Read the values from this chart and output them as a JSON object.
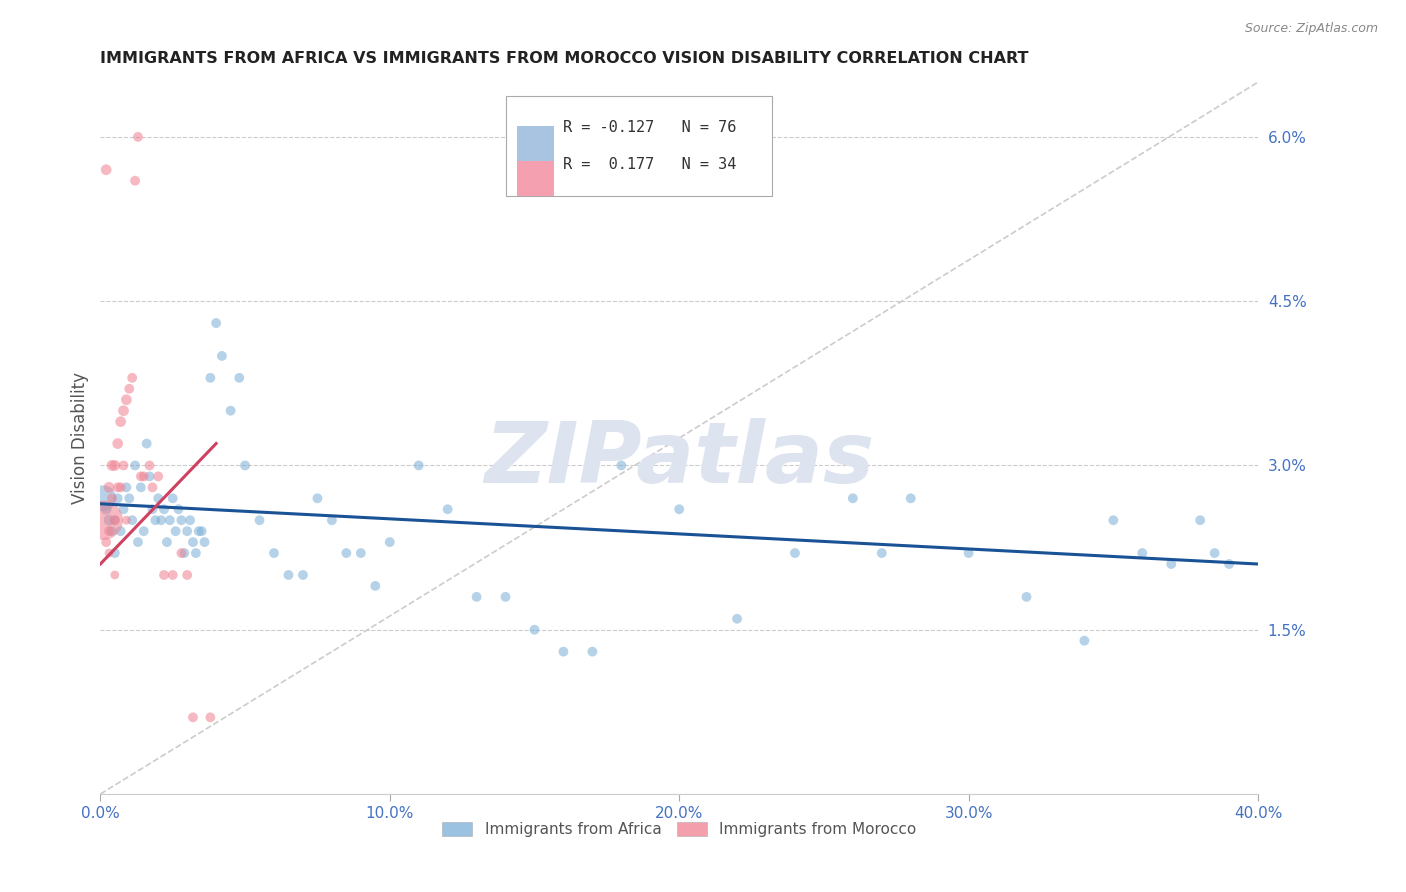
{
  "title": "IMMIGRANTS FROM AFRICA VS IMMIGRANTS FROM MOROCCO VISION DISABILITY CORRELATION CHART",
  "source": "Source: ZipAtlas.com",
  "ylabel": "Vision Disability",
  "x_min": 0.0,
  "x_max": 0.4,
  "y_min": 0.0,
  "y_max": 0.065,
  "x_ticks": [
    0.0,
    0.1,
    0.2,
    0.3,
    0.4
  ],
  "x_tick_labels": [
    "0.0%",
    "10.0%",
    "20.0%",
    "30.0%",
    "40.0%"
  ],
  "y_ticks": [
    0.0,
    0.015,
    0.03,
    0.045,
    0.06
  ],
  "y_tick_labels": [
    "",
    "1.5%",
    "3.0%",
    "4.5%",
    "6.0%"
  ],
  "grid_color": "#cccccc",
  "watermark": "ZIPatlas",
  "africa_color": "#7aaed6",
  "morocco_color": "#f08090",
  "legend_box_africa": "#a8c4e0",
  "legend_box_morocco": "#f4a0b0",
  "legend_R_africa": "R = -0.127",
  "legend_N_africa": "N = 76",
  "legend_R_morocco": "R =  0.177",
  "legend_N_morocco": "N = 34",
  "africa_x": [
    0.001,
    0.002,
    0.003,
    0.004,
    0.005,
    0.005,
    0.006,
    0.007,
    0.008,
    0.009,
    0.01,
    0.011,
    0.012,
    0.013,
    0.014,
    0.015,
    0.016,
    0.017,
    0.018,
    0.019,
    0.02,
    0.021,
    0.022,
    0.023,
    0.024,
    0.025,
    0.026,
    0.027,
    0.028,
    0.029,
    0.03,
    0.031,
    0.032,
    0.033,
    0.034,
    0.035,
    0.036,
    0.038,
    0.04,
    0.042,
    0.045,
    0.048,
    0.05,
    0.055,
    0.06,
    0.065,
    0.07,
    0.075,
    0.08,
    0.085,
    0.09,
    0.095,
    0.1,
    0.11,
    0.12,
    0.13,
    0.14,
    0.15,
    0.16,
    0.17,
    0.18,
    0.2,
    0.22,
    0.24,
    0.26,
    0.27,
    0.28,
    0.3,
    0.32,
    0.34,
    0.35,
    0.36,
    0.37,
    0.38,
    0.385,
    0.39
  ],
  "africa_y": [
    0.027,
    0.026,
    0.025,
    0.024,
    0.025,
    0.022,
    0.027,
    0.024,
    0.026,
    0.028,
    0.027,
    0.025,
    0.03,
    0.023,
    0.028,
    0.024,
    0.032,
    0.029,
    0.026,
    0.025,
    0.027,
    0.025,
    0.026,
    0.023,
    0.025,
    0.027,
    0.024,
    0.026,
    0.025,
    0.022,
    0.024,
    0.025,
    0.023,
    0.022,
    0.024,
    0.024,
    0.023,
    0.038,
    0.043,
    0.04,
    0.035,
    0.038,
    0.03,
    0.025,
    0.022,
    0.02,
    0.02,
    0.027,
    0.025,
    0.022,
    0.022,
    0.019,
    0.023,
    0.03,
    0.026,
    0.018,
    0.018,
    0.015,
    0.013,
    0.013,
    0.03,
    0.026,
    0.016,
    0.022,
    0.027,
    0.022,
    0.027,
    0.022,
    0.018,
    0.014,
    0.025,
    0.022,
    0.021,
    0.025,
    0.022,
    0.021
  ],
  "africa_size": [
    350,
    60,
    60,
    50,
    50,
    50,
    50,
    50,
    50,
    50,
    50,
    50,
    50,
    50,
    50,
    50,
    50,
    50,
    50,
    50,
    50,
    50,
    50,
    50,
    50,
    50,
    50,
    50,
    50,
    50,
    50,
    50,
    50,
    50,
    50,
    50,
    50,
    50,
    50,
    50,
    50,
    50,
    50,
    50,
    50,
    50,
    50,
    50,
    50,
    50,
    50,
    50,
    50,
    50,
    50,
    50,
    50,
    50,
    50,
    50,
    50,
    50,
    50,
    50,
    50,
    50,
    50,
    50,
    50,
    50,
    50,
    50,
    50,
    50,
    50,
    50
  ],
  "morocco_x": [
    0.001,
    0.002,
    0.002,
    0.003,
    0.003,
    0.003,
    0.004,
    0.004,
    0.005,
    0.005,
    0.005,
    0.006,
    0.006,
    0.007,
    0.007,
    0.008,
    0.008,
    0.009,
    0.009,
    0.01,
    0.011,
    0.012,
    0.013,
    0.014,
    0.015,
    0.017,
    0.018,
    0.02,
    0.022,
    0.025,
    0.028,
    0.03,
    0.032,
    0.038
  ],
  "morocco_y": [
    0.025,
    0.057,
    0.023,
    0.028,
    0.024,
    0.022,
    0.03,
    0.027,
    0.03,
    0.025,
    0.02,
    0.032,
    0.028,
    0.034,
    0.028,
    0.035,
    0.03,
    0.036,
    0.025,
    0.037,
    0.038,
    0.056,
    0.06,
    0.029,
    0.029,
    0.03,
    0.028,
    0.029,
    0.02,
    0.02,
    0.022,
    0.02,
    0.007,
    0.007
  ],
  "morocco_size": [
    800,
    60,
    50,
    60,
    50,
    40,
    60,
    50,
    60,
    50,
    40,
    60,
    50,
    60,
    50,
    60,
    50,
    60,
    40,
    50,
    50,
    50,
    50,
    50,
    50,
    50,
    50,
    50,
    50,
    50,
    50,
    50,
    50,
    50
  ],
  "blue_line_x": [
    0.0,
    0.4
  ],
  "blue_line_y": [
    0.0265,
    0.021
  ],
  "pink_line_x": [
    0.0,
    0.04
  ],
  "pink_line_y": [
    0.021,
    0.032
  ],
  "diag_line_x": [
    0.0,
    0.4
  ],
  "diag_line_y": [
    0.0,
    0.065
  ],
  "africa_label": "Immigrants from Africa",
  "morocco_label": "Immigrants from Morocco",
  "title_color": "#222222",
  "axis_label_color": "#555555",
  "tick_color": "#4472c4",
  "trend_blue": "#1a5296",
  "trend_pink": "#d04060",
  "diag_color": "#cccccc"
}
